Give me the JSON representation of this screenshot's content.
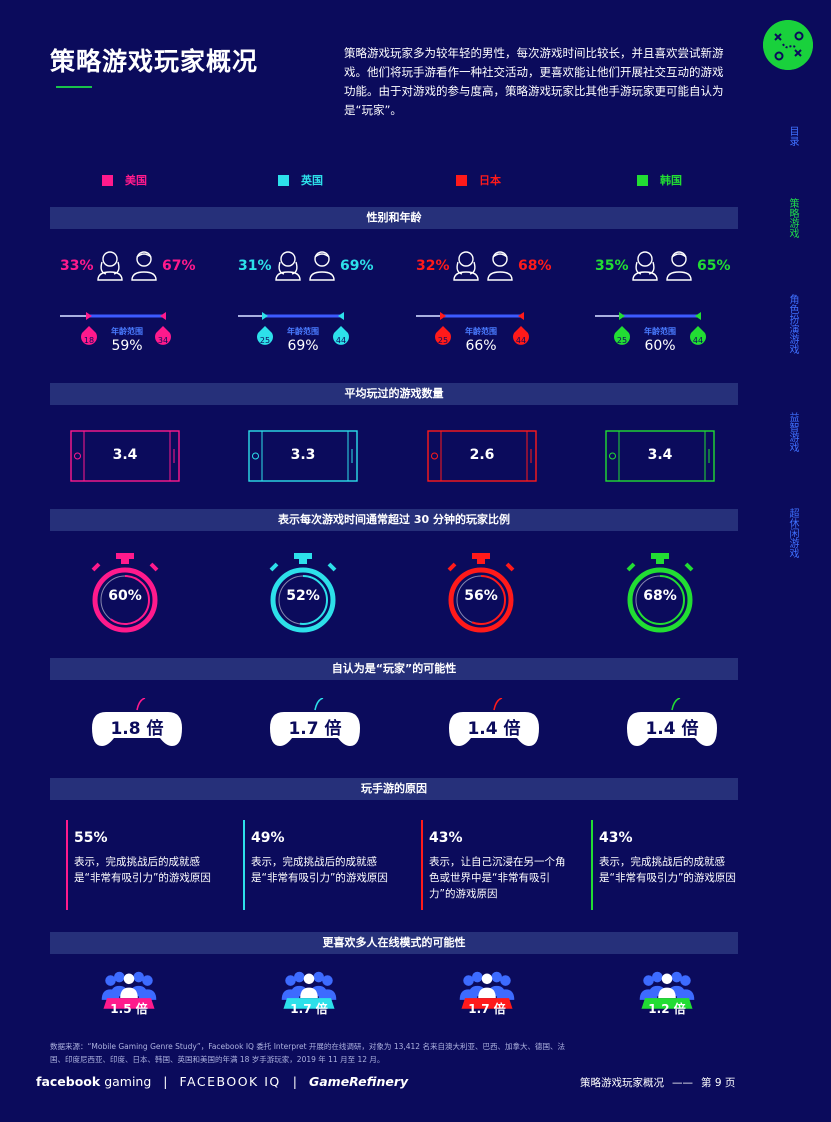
{
  "header": {
    "title": "策略游戏玩家概况",
    "intro": "策略游戏玩家多为较年轻的男性，每次游戏时间比较长，并且喜欢尝试新游戏。他们将玩手游看作一种社交活动，更喜欢能让他们开展社交互动的游戏功能。由于对游戏的参与度高，策略游戏玩家比其他手游玩家更可能自认为是“玩家”。"
  },
  "side_nav": [
    "目录",
    "策略游戏",
    "角色扮演游戏",
    "益智游戏",
    "超休闲游戏"
  ],
  "colors": {
    "us": "#ff1a8c",
    "uk": "#2de0ea",
    "jp": "#ff1a1a",
    "kr": "#22dd33",
    "bg": "#0b0b5c",
    "band": "#26307a",
    "accent": "#4a7bff"
  },
  "legend": [
    {
      "label": "美国",
      "color": "#ff1a8c"
    },
    {
      "label": "英国",
      "color": "#2de0ea"
    },
    {
      "label": "日本",
      "color": "#ff1a1a"
    },
    {
      "label": "韩国",
      "color": "#22dd33"
    }
  ],
  "sections": {
    "gender_age": "性别和年龄",
    "games_played": "平均玩过的游戏数量",
    "session_time": "表示每次游戏时间通常超过 30 分钟的玩家比例",
    "gamer_identity": "自认为是“玩家”的可能性",
    "reasons": "玩手游的原因",
    "multiplayer": "更喜欢多人在线模式的可能性"
  },
  "gender_age": [
    {
      "female": "33%",
      "male": "67%",
      "age_label": "年龄范围",
      "age_min": "18",
      "age_max": "34",
      "age_pct": "59%"
    },
    {
      "female": "31%",
      "male": "69%",
      "age_label": "年龄范围",
      "age_min": "25",
      "age_max": "44",
      "age_pct": "69%"
    },
    {
      "female": "32%",
      "male": "68%",
      "age_label": "年龄范围",
      "age_min": "25",
      "age_max": "44",
      "age_pct": "66%"
    },
    {
      "female": "35%",
      "male": "65%",
      "age_label": "年龄范围",
      "age_min": "25",
      "age_max": "44",
      "age_pct": "60%"
    }
  ],
  "games_played": [
    "3.4",
    "3.3",
    "2.6",
    "3.4"
  ],
  "session_time": [
    {
      "label": "60%",
      "value": 60
    },
    {
      "label": "52%",
      "value": 52
    },
    {
      "label": "56%",
      "value": 56
    },
    {
      "label": "68%",
      "value": 68
    }
  ],
  "gamer_identity": [
    "1.8 倍",
    "1.7 倍",
    "1.4 倍",
    "1.4 倍"
  ],
  "reasons": [
    {
      "pct": "55%",
      "text": "表示，完成挑战后的成就感是“非常有吸引力”的游戏原因"
    },
    {
      "pct": "49%",
      "text": "表示，完成挑战后的成就感是“非常有吸引力”的游戏原因"
    },
    {
      "pct": "43%",
      "text": "表示，让自己沉浸在另一个角色或世界中是“非常有吸引力”的游戏原因"
    },
    {
      "pct": "43%",
      "text": "表示，完成挑战后的成就感是“非常有吸引力”的游戏原因"
    }
  ],
  "multiplayer": [
    "1.5 倍",
    "1.7 倍",
    "1.7 倍",
    "1.2 倍"
  ],
  "footer": {
    "source": "数据来源：“Mobile Gaming Genre Study”，Facebook IQ 委托 Interpret 开展的在线调研，对象为 13,412 名来自澳大利亚、巴西、加拿大、德国、法国、印度尼西亚、印度、日本、韩国、英国和美国的年满 18 岁手游玩家，2019 年 11 月至 12 月。",
    "logo_fb_bold": "facebook",
    "logo_fb_light": "gaming",
    "logo_sep": "|",
    "logo_iq": "FACEBOOK IQ",
    "logo_gr": "GameRefinery",
    "page_title": "策略游戏玩家概况",
    "page_dash": "——",
    "page_num": "第 9 页"
  }
}
